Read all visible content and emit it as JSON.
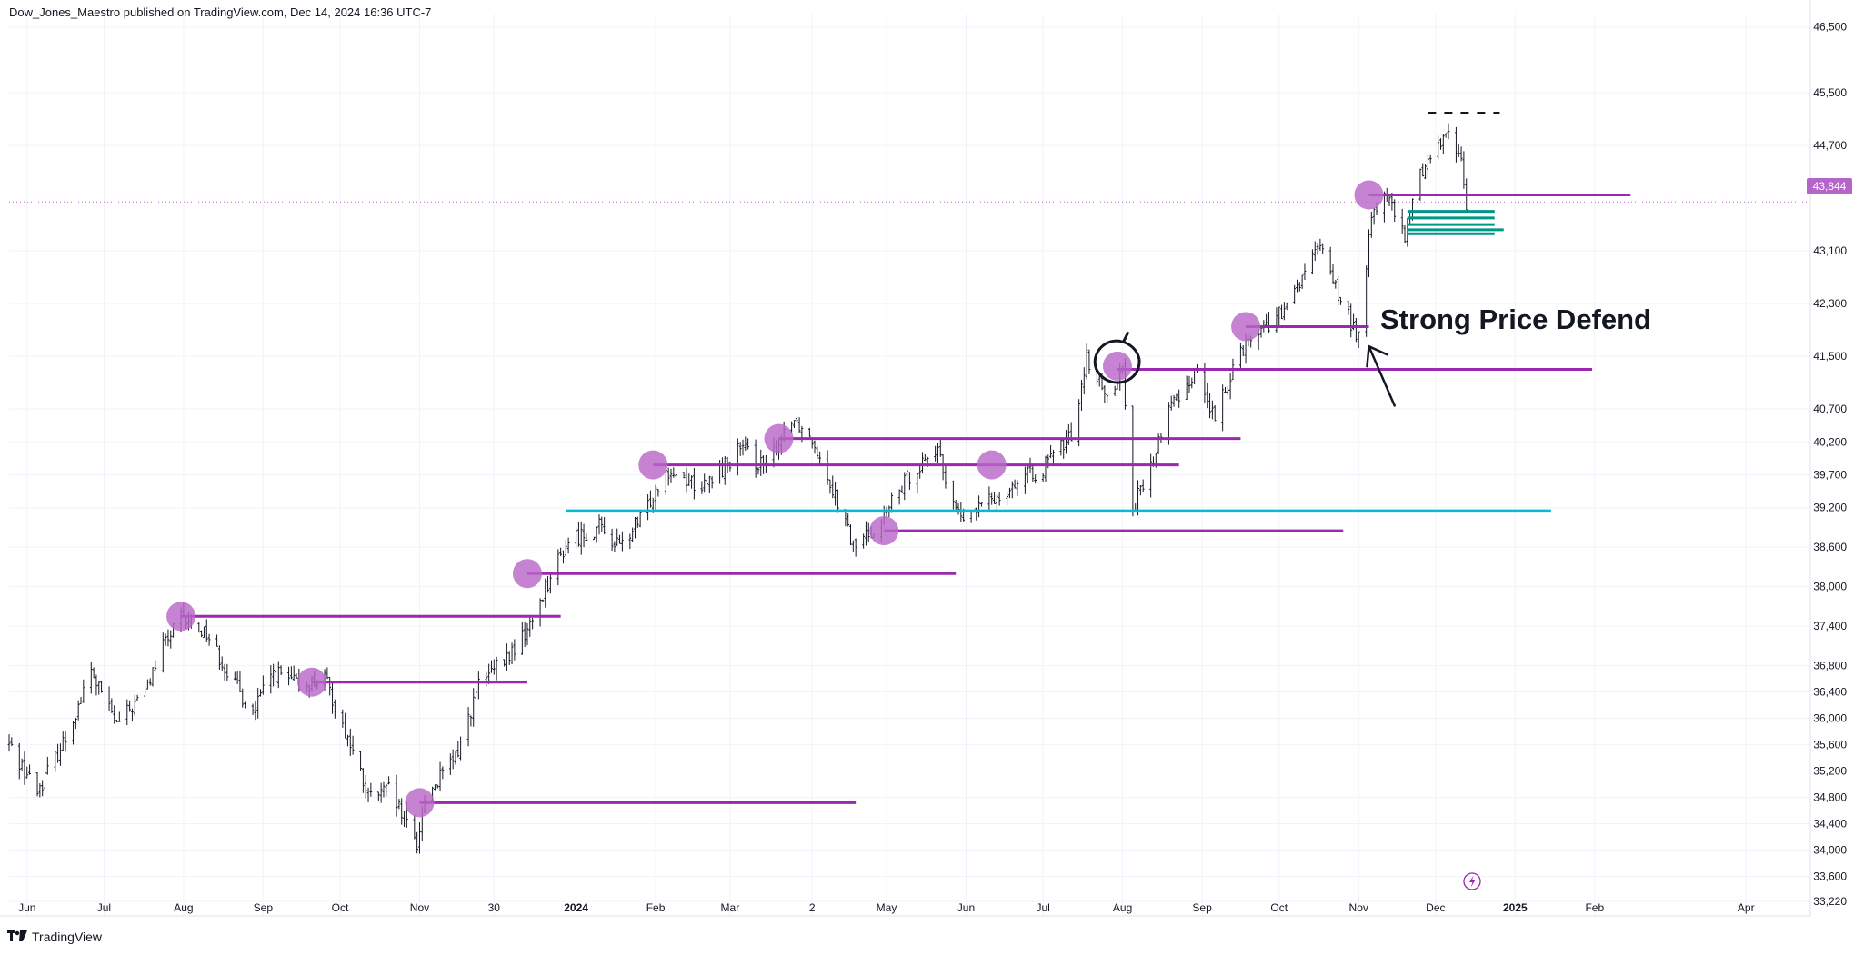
{
  "header": {
    "published_text": "Dow_Jones_Maestro published on TradingView.com, Dec 14, 2024 16:36 UTC-7"
  },
  "footer": {
    "brand": "TradingView",
    "logo_icon": "tradingview-logo-icon"
  },
  "price_tag": {
    "value": "43,844",
    "color": "#b565c9"
  },
  "annotation": {
    "text": "Strong Price Defend"
  },
  "colors": {
    "candle": "#131722",
    "support_line": "#9c27b0",
    "circle_marker": "#ba68c8",
    "key_level": "#00bcd4",
    "target_zone": "#009688",
    "grid": "#f0f3fa",
    "axis_text": "#131722"
  },
  "chart_data": {
    "type": "candlestick",
    "title": "",
    "x_range": [
      "2023-05-25",
      "2025-04-25"
    ],
    "y_range": [
      33000,
      46800
    ],
    "y_ticks": [
      "46,500",
      "45,500",
      "44,700",
      "43,844",
      "43,100",
      "42,300",
      "41,500",
      "40,700",
      "40,200",
      "39,700",
      "39,200",
      "38,600",
      "38,000",
      "37,400",
      "36,800",
      "36,400",
      "36,000",
      "35,600",
      "35,200",
      "34,800",
      "34,400",
      "34,000",
      "33,600",
      "33,220"
    ],
    "x_ticks": [
      {
        "label": "Jun",
        "date": "2023-06-01"
      },
      {
        "label": "Jul",
        "date": "2023-07-01"
      },
      {
        "label": "Aug",
        "date": "2023-08-01"
      },
      {
        "label": "Sep",
        "date": "2023-09-01"
      },
      {
        "label": "Oct",
        "date": "2023-10-01"
      },
      {
        "label": "Nov",
        "date": "2023-11-01"
      },
      {
        "label": "30",
        "date": "2023-11-30"
      },
      {
        "label": "2024",
        "date": "2024-01-01"
      },
      {
        "label": "Feb",
        "date": "2024-02-01"
      },
      {
        "label": "Mar",
        "date": "2024-03-01"
      },
      {
        "label": "2",
        "date": "2024-04-02"
      },
      {
        "label": "May",
        "date": "2024-05-01"
      },
      {
        "label": "Jun",
        "date": "2024-06-01"
      },
      {
        "label": "Jul",
        "date": "2024-07-01"
      },
      {
        "label": "Aug",
        "date": "2024-08-01"
      },
      {
        "label": "Sep",
        "date": "2024-09-01"
      },
      {
        "label": "Oct",
        "date": "2024-10-01"
      },
      {
        "label": "Nov",
        "date": "2024-11-01"
      },
      {
        "label": "Dec",
        "date": "2024-12-01"
      },
      {
        "label": "2025",
        "date": "2025-01-01"
      },
      {
        "label": "Feb",
        "date": "2025-02-01"
      },
      {
        "label": "Apr",
        "date": "2025-04-01"
      }
    ],
    "price_path": [
      [
        "2023-05-25",
        35600
      ],
      [
        "2023-06-05",
        34900
      ],
      [
        "2023-06-16",
        35700
      ],
      [
        "2023-06-26",
        36700
      ],
      [
        "2023-07-06",
        35900
      ],
      [
        "2023-07-17",
        36400
      ],
      [
        "2023-07-24",
        37100
      ],
      [
        "2023-07-31",
        37500
      ],
      [
        "2023-08-10",
        37300
      ],
      [
        "2023-08-21",
        36500
      ],
      [
        "2023-08-28",
        36100
      ],
      [
        "2023-09-05",
        36700
      ],
      [
        "2023-09-15",
        36500
      ],
      [
        "2023-09-25",
        36600
      ],
      [
        "2023-10-05",
        35600
      ],
      [
        "2023-10-12",
        34800
      ],
      [
        "2023-10-20",
        34900
      ],
      [
        "2023-10-31",
        34100
      ],
      [
        "2023-11-03",
        34800
      ],
      [
        "2023-11-15",
        35400
      ],
      [
        "2023-11-24",
        36500
      ],
      [
        "2023-12-05",
        36900
      ],
      [
        "2023-12-14",
        37400
      ],
      [
        "2023-12-20",
        38000
      ],
      [
        "2023-12-29",
        38700
      ],
      [
        "2024-01-10",
        38900
      ],
      [
        "2024-01-18",
        38600
      ],
      [
        "2024-01-26",
        39000
      ],
      [
        "2024-02-05",
        39800
      ],
      [
        "2024-02-20",
        39500
      ],
      [
        "2024-03-05",
        40100
      ],
      [
        "2024-03-15",
        39800
      ],
      [
        "2024-03-25",
        40600
      ],
      [
        "2024-04-03",
        40200
      ],
      [
        "2024-04-12",
        39300
      ],
      [
        "2024-04-18",
        38600
      ],
      [
        "2024-04-29",
        39000
      ],
      [
        "2024-05-10",
        39700
      ],
      [
        "2024-05-20",
        40100
      ],
      [
        "2024-05-30",
        39000
      ],
      [
        "2024-06-10",
        39300
      ],
      [
        "2024-06-21",
        39600
      ],
      [
        "2024-07-01",
        39800
      ],
      [
        "2024-07-12",
        40300
      ],
      [
        "2024-07-18",
        41500
      ],
      [
        "2024-07-25",
        40900
      ],
      [
        "2024-08-01",
        41300
      ],
      [
        "2024-08-05",
        39200
      ],
      [
        "2024-08-12",
        39800
      ],
      [
        "2024-08-19",
        40700
      ],
      [
        "2024-08-30",
        41300
      ],
      [
        "2024-09-06",
        40500
      ],
      [
        "2024-09-15",
        41600
      ],
      [
        "2024-09-23",
        41900
      ],
      [
        "2024-10-04",
        42200
      ],
      [
        "2024-10-11",
        42800
      ],
      [
        "2024-10-18",
        43200
      ],
      [
        "2024-10-25",
        42300
      ],
      [
        "2024-11-01",
        41800
      ],
      [
        "2024-11-06",
        43600
      ],
      [
        "2024-11-11",
        44000
      ],
      [
        "2024-11-19",
        43300
      ],
      [
        "2024-11-25",
        44300
      ],
      [
        "2024-12-02",
        44700
      ],
      [
        "2024-12-06",
        45000
      ],
      [
        "2024-12-11",
        44400
      ],
      [
        "2024-12-13",
        43844
      ]
    ],
    "support_levels": [
      {
        "price": 37550,
        "start": "2023-07-31",
        "end": "2023-12-26"
      },
      {
        "price": 36550,
        "start": "2023-09-20",
        "end": "2023-12-13"
      },
      {
        "price": 34720,
        "start": "2023-11-01",
        "end": "2024-04-19"
      },
      {
        "price": 38200,
        "start": "2023-12-13",
        "end": "2024-05-28"
      },
      {
        "price": 39850,
        "start": "2024-01-31",
        "end": "2024-08-23"
      },
      {
        "price": 40250,
        "start": "2024-03-20",
        "end": "2024-09-16"
      },
      {
        "price": 38850,
        "start": "2024-04-30",
        "end": "2024-10-26"
      },
      {
        "price": 41300,
        "start": "2024-07-30",
        "end": "2025-01-31"
      },
      {
        "price": 41950,
        "start": "2024-09-18",
        "end": "2024-11-05"
      },
      {
        "price": 43950,
        "start": "2024-11-05",
        "end": "2025-02-15"
      }
    ],
    "key_level": {
      "price": 39150,
      "start": "2023-12-28",
      "end": "2025-01-15"
    },
    "circle_markers": [
      {
        "date": "2023-07-31",
        "price": 37550
      },
      {
        "date": "2023-09-20",
        "price": 36550
      },
      {
        "date": "2023-11-01",
        "price": 34720
      },
      {
        "date": "2023-12-13",
        "price": 38200
      },
      {
        "date": "2024-01-31",
        "price": 39850
      },
      {
        "date": "2024-03-20",
        "price": 40250
      },
      {
        "date": "2024-04-30",
        "price": 38850
      },
      {
        "date": "2024-06-11",
        "price": 39850
      },
      {
        "date": "2024-07-30",
        "price": 41350
      },
      {
        "date": "2024-09-18",
        "price": 41950
      },
      {
        "date": "2024-11-05",
        "price": 43950
      }
    ],
    "target_zone": {
      "start": "2024-11-20",
      "end": "2024-12-24",
      "levels": [
        43700,
        43600,
        43500,
        43420,
        43360
      ]
    },
    "top_dashes": {
      "price": 45200,
      "start": "2024-11-28",
      "end": "2024-12-26"
    },
    "highlight_ellipse": {
      "date": "2024-07-30",
      "price": 41400
    },
    "arrow": {
      "from": {
        "date": "2024-11-15",
        "price": 40750
      },
      "to": {
        "date": "2024-11-05",
        "price": 41650
      }
    }
  }
}
